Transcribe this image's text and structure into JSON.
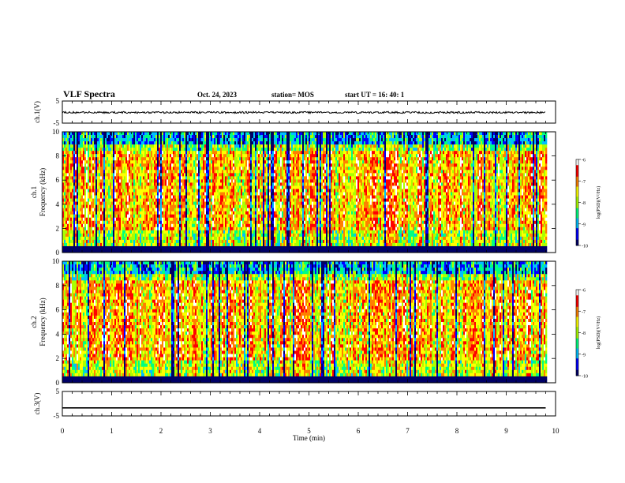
{
  "header": {
    "title": "VLF Spectra",
    "date": "Oct. 24, 2023",
    "station": "station= MOS",
    "start_ut": "start UT =  16: 40: 1"
  },
  "chart_data": [
    {
      "type": "line",
      "panel": "ch1-waveform",
      "ylabel": "ch.1(V)",
      "ylim": [
        -5,
        5
      ],
      "y_ticks": [
        "5",
        "-5"
      ],
      "xlim": [
        0,
        10
      ],
      "series": [
        {
          "values_description": "noisy trace near zero",
          "level": 0
        }
      ]
    },
    {
      "type": "heatmap",
      "panel": "ch1-spectrogram",
      "ylabel": "ch.1 Frequency (kHz)",
      "ylim": [
        0,
        10
      ],
      "y_ticks": [
        "0",
        "2",
        "4",
        "6",
        "8",
        "10"
      ],
      "xlim": [
        0,
        10
      ],
      "colorbar": {
        "label": "log(PSD)(V²/Hz)",
        "range": [
          -10,
          -6
        ],
        "ticks": [
          "-6",
          "-7",
          "-8",
          "-9",
          "-10"
        ]
      }
    },
    {
      "type": "heatmap",
      "panel": "ch2-spectrogram",
      "ylabel": "ch.2 Frequency (kHz)",
      "ylim": [
        0,
        10
      ],
      "y_ticks": [
        "0",
        "2",
        "4",
        "6",
        "8",
        "10"
      ],
      "xlim": [
        0,
        10
      ],
      "colorbar": {
        "label": "log(PSD)(V²/Hz)",
        "range": [
          -10,
          -6
        ],
        "ticks": [
          "-6",
          "-7",
          "-8",
          "-9",
          "-10"
        ]
      }
    },
    {
      "type": "line",
      "panel": "ch3-waveform",
      "ylabel": "ch.3(V)",
      "ylim": [
        -5,
        5
      ],
      "y_ticks": [
        "5",
        "-5"
      ],
      "xlim": [
        0,
        10
      ],
      "series": [
        {
          "values_description": "flat line",
          "level": -1.7
        }
      ]
    }
  ],
  "x_axis": {
    "label": "Time (min)",
    "ticks": [
      "0",
      "1",
      "2",
      "3",
      "4",
      "5",
      "6",
      "7",
      "8",
      "9",
      "10"
    ],
    "data_end": 9.8
  },
  "colors": {
    "colormap": [
      "#000066",
      "#0000ff",
      "#00bfff",
      "#00ff80",
      "#aaff00",
      "#ffff00",
      "#ff8000",
      "#ff0000",
      "#ffffff"
    ]
  }
}
